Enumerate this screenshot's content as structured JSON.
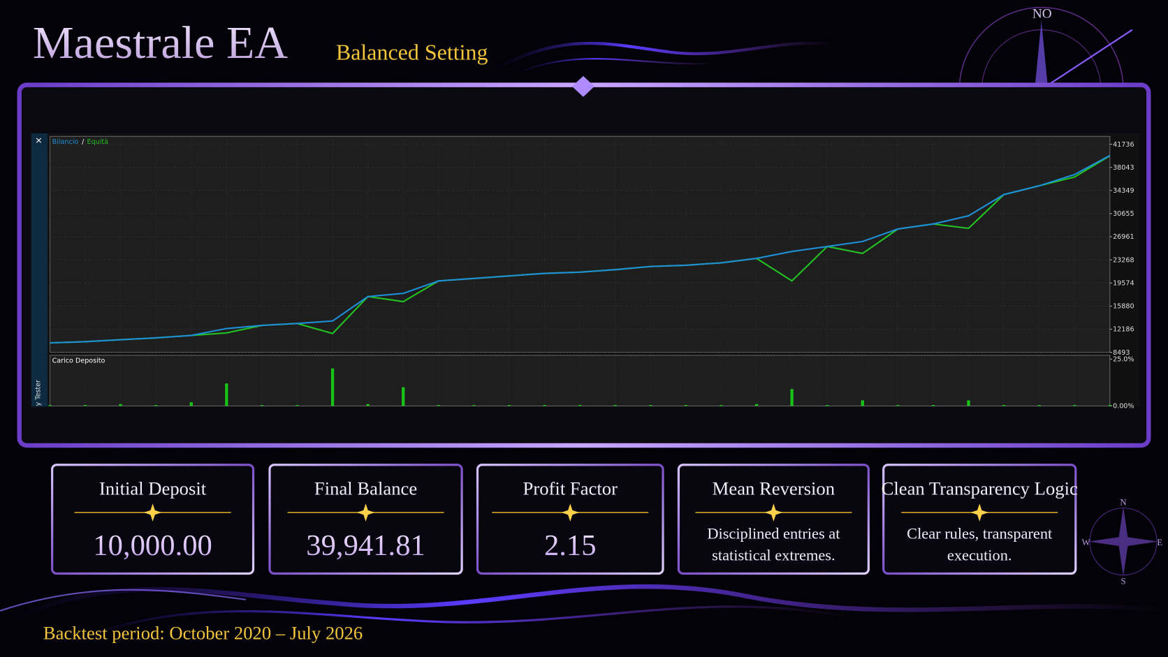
{
  "header": {
    "title": "Maestrale EA",
    "subtitle": "Balanced Setting"
  },
  "compass": {
    "top": "NO",
    "n": "N",
    "e": "E",
    "s": "S",
    "w": "W"
  },
  "panel": {
    "close": "×",
    "side_label": "y Tester"
  },
  "chart_data": [
    {
      "type": "line",
      "legend_separator": "/",
      "series": [
        {
          "name": "Bilancio",
          "color": "#1e8fd6",
          "values": [
            10000,
            10200,
            10500,
            10800,
            11200,
            12300,
            12800,
            13100,
            13500,
            17400,
            17900,
            19900,
            20300,
            20700,
            21100,
            21300,
            21700,
            22200,
            22400,
            22800,
            23500,
            24600,
            25400,
            26200,
            28200,
            29000,
            30300,
            33700,
            35100,
            36900,
            39942
          ]
        },
        {
          "name": "Equità",
          "color": "#22c022",
          "values": [
            10000,
            10200,
            10500,
            10800,
            11200,
            11600,
            12800,
            13100,
            11500,
            17400,
            16600,
            19900,
            20300,
            20700,
            21100,
            21300,
            21700,
            22200,
            22400,
            22800,
            23500,
            19900,
            25400,
            24300,
            28200,
            29000,
            28300,
            33700,
            35100,
            36500,
            39900
          ]
        }
      ],
      "ylim": [
        8493,
        43000
      ],
      "yticks": [
        8493,
        12186,
        15880,
        19574,
        23268,
        26961,
        30655,
        34349,
        38043,
        41736
      ],
      "grid": true
    },
    {
      "type": "bar",
      "title": "Carico Deposito",
      "color": "#18c418",
      "values": [
        0.5,
        0.5,
        1,
        0.5,
        2,
        12,
        0.5,
        0.5,
        20,
        1,
        10,
        0.5,
        0.5,
        0.5,
        0.5,
        0.5,
        0.5,
        0.5,
        0.5,
        0.5,
        1,
        9,
        0.5,
        3,
        0.5,
        0.5,
        3,
        0.5,
        0.5,
        0.5,
        0.5
      ],
      "ylim": [
        0,
        27
      ],
      "yticks": [
        {
          "value": 0,
          "label": "0.00%"
        },
        {
          "value": 25,
          "label": "25.0%"
        }
      ]
    }
  ],
  "cards": [
    {
      "title": "Initial Deposit",
      "value": "10,000.00"
    },
    {
      "title": "Final Balance",
      "value": "39,941.81"
    },
    {
      "title": "Profit Factor",
      "value": "2.15"
    },
    {
      "title": "Mean Reversion",
      "lines": [
        "Disciplined entries at",
        "statistical extremes."
      ]
    },
    {
      "title": "Clean Transparency Logic",
      "lines": [
        "Clear rules, transparent",
        "execution."
      ]
    }
  ],
  "footer": "Backtest period: October 2020 – July 2026"
}
